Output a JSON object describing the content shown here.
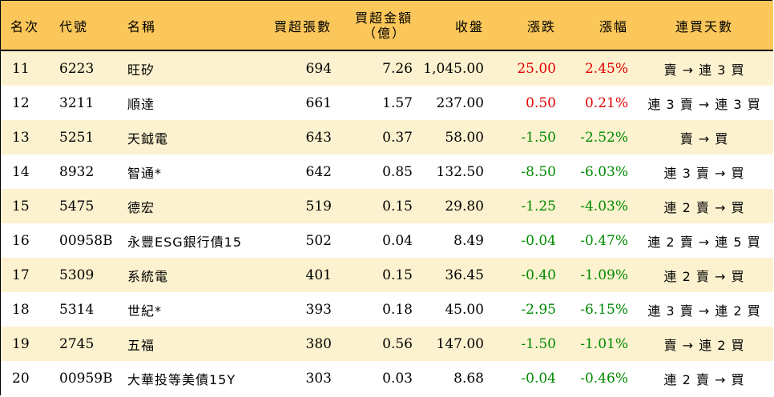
{
  "header": {
    "rank": "名次",
    "code": "代號",
    "name": "名稱",
    "shares": "買超張數",
    "amount_line1": "買超金額",
    "amount_line2": "（億）",
    "close": "收盤",
    "change": "漲跌",
    "pct": "漲幅",
    "days": "連買天數"
  },
  "colors": {
    "header_bg": "#fbc75a",
    "odd_row_bg": "#fdf2cf",
    "up": "#e00000",
    "down": "#008a00"
  },
  "rows": [
    {
      "rank": "11",
      "code": "6223",
      "name": "旺矽",
      "shares": "694",
      "amount": "7.26",
      "close": "1,045.00",
      "change": "25.00",
      "pct": "2.45%",
      "trend": "up",
      "days": "賣 → 連 3 買"
    },
    {
      "rank": "12",
      "code": "3211",
      "name": "順達",
      "shares": "661",
      "amount": "1.57",
      "close": "237.00",
      "change": "0.50",
      "pct": "0.21%",
      "trend": "up",
      "days": "連 3 賣 → 連 3 買"
    },
    {
      "rank": "13",
      "code": "5251",
      "name": "天鉞電",
      "shares": "643",
      "amount": "0.37",
      "close": "58.00",
      "change": "-1.50",
      "pct": "-2.52%",
      "trend": "down",
      "days": "賣 → 買"
    },
    {
      "rank": "14",
      "code": "8932",
      "name": "智通*",
      "shares": "642",
      "amount": "0.85",
      "close": "132.50",
      "change": "-8.50",
      "pct": "-6.03%",
      "trend": "down",
      "days": "連 3 賣 → 買"
    },
    {
      "rank": "15",
      "code": "5475",
      "name": "德宏",
      "shares": "519",
      "amount": "0.15",
      "close": "29.80",
      "change": "-1.25",
      "pct": "-4.03%",
      "trend": "down",
      "days": "連 2 賣 → 買"
    },
    {
      "rank": "16",
      "code": "00958B",
      "name": "永豐ESG銀行債15",
      "shares": "502",
      "amount": "0.04",
      "close": "8.49",
      "change": "-0.04",
      "pct": "-0.47%",
      "trend": "down",
      "days": "連 2 賣 → 連 5 買"
    },
    {
      "rank": "17",
      "code": "5309",
      "name": "系統電",
      "shares": "401",
      "amount": "0.15",
      "close": "36.45",
      "change": "-0.40",
      "pct": "-1.09%",
      "trend": "down",
      "days": "連 2 賣 → 買"
    },
    {
      "rank": "18",
      "code": "5314",
      "name": "世紀*",
      "shares": "393",
      "amount": "0.18",
      "close": "45.00",
      "change": "-2.95",
      "pct": "-6.15%",
      "trend": "down",
      "days": "連 3 賣 → 連 2 買"
    },
    {
      "rank": "19",
      "code": "2745",
      "name": "五福",
      "shares": "380",
      "amount": "0.56",
      "close": "147.00",
      "change": "-1.50",
      "pct": "-1.01%",
      "trend": "down",
      "days": "賣 → 連 2 買"
    },
    {
      "rank": "20",
      "code": "00959B",
      "name": "大華投等美債15Y",
      "shares": "303",
      "amount": "0.03",
      "close": "8.68",
      "change": "-0.04",
      "pct": "-0.46%",
      "trend": "down",
      "days": "連 2 賣 → 買"
    }
  ]
}
